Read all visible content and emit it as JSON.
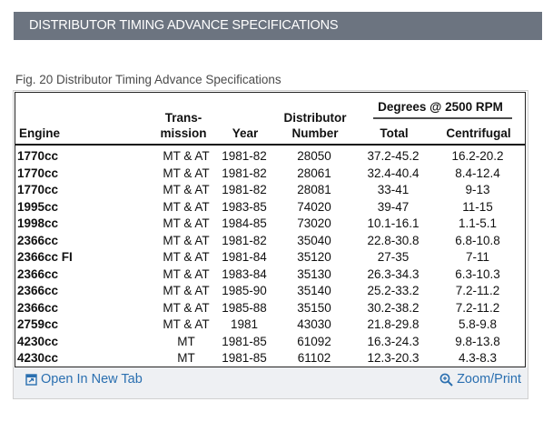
{
  "header": {
    "title": "DISTRIBUTOR TIMING ADVANCE SPECIFICATIONS"
  },
  "figure": {
    "caption": "Fig. 20 Distributor Timing Advance Specifications"
  },
  "table": {
    "group_header": "Degrees @ 2500 RPM",
    "columns": {
      "engine": "Engine",
      "trans_1": "Trans-",
      "trans_2": "mission",
      "year": "Year",
      "dist_1": "Distributor",
      "dist_2": "Number",
      "total": "Total",
      "centrifugal": "Centrifugal"
    },
    "rows": [
      {
        "engine": "1770cc",
        "trans": "MT & AT",
        "year": "1981-82",
        "dist": "28050",
        "total": "37.2-45.2",
        "cent": "16.2-20.2"
      },
      {
        "engine": "1770cc",
        "trans": "MT & AT",
        "year": "1981-82",
        "dist": "28061",
        "total": "32.4-40.4",
        "cent": "8.4-12.4"
      },
      {
        "engine": "1770cc",
        "trans": "MT & AT",
        "year": "1981-82",
        "dist": "28081",
        "total": "33-41",
        "cent": "9-13"
      },
      {
        "engine": "1995cc",
        "trans": "MT & AT",
        "year": "1983-85",
        "dist": "74020",
        "total": "39-47",
        "cent": "11-15"
      },
      {
        "engine": "1998cc",
        "trans": "MT & AT",
        "year": "1984-85",
        "dist": "73020",
        "total": "10.1-16.1",
        "cent": "1.1-5.1"
      },
      {
        "engine": "2366cc",
        "trans": "MT & AT",
        "year": "1981-82",
        "dist": "35040",
        "total": "22.8-30.8",
        "cent": "6.8-10.8"
      },
      {
        "engine": "2366cc FI",
        "trans": "MT & AT",
        "year": "1981-84",
        "dist": "35120",
        "total": "27-35",
        "cent": "7-11"
      },
      {
        "engine": "2366cc",
        "trans": "MT & AT",
        "year": "1983-84",
        "dist": "35130",
        "total": "26.3-34.3",
        "cent": "6.3-10.3"
      },
      {
        "engine": "2366cc",
        "trans": "MT & AT",
        "year": "1985-90",
        "dist": "35140",
        "total": "25.2-33.2",
        "cent": "7.2-11.2"
      },
      {
        "engine": "2366cc",
        "trans": "MT & AT",
        "year": "1985-88",
        "dist": "35150",
        "total": "30.2-38.2",
        "cent": "7.2-11.2"
      },
      {
        "engine": "2759cc",
        "trans": "MT & AT",
        "year": "1981",
        "dist": "43030",
        "total": "21.8-29.8",
        "cent": "5.8-9.8"
      },
      {
        "engine": "4230cc",
        "trans": "MT",
        "year": "1981-85",
        "dist": "61092",
        "total": "16.3-24.3",
        "cent": "9.8-13.8"
      },
      {
        "engine": "4230cc",
        "trans": "MT",
        "year": "1981-85",
        "dist": "61102",
        "total": "12.3-20.3",
        "cent": "4.3-8.3"
      }
    ]
  },
  "footer": {
    "open_tab": "Open In New Tab",
    "zoom": "Zoom/Print",
    "open_tab_icon": "open-in-new-tab-icon",
    "zoom_icon": "magnifier-zoom-icon"
  },
  "colors": {
    "header_bg": "#6c7480",
    "link": "#2a6fb0",
    "bottom_bar": "#eef0f3"
  }
}
